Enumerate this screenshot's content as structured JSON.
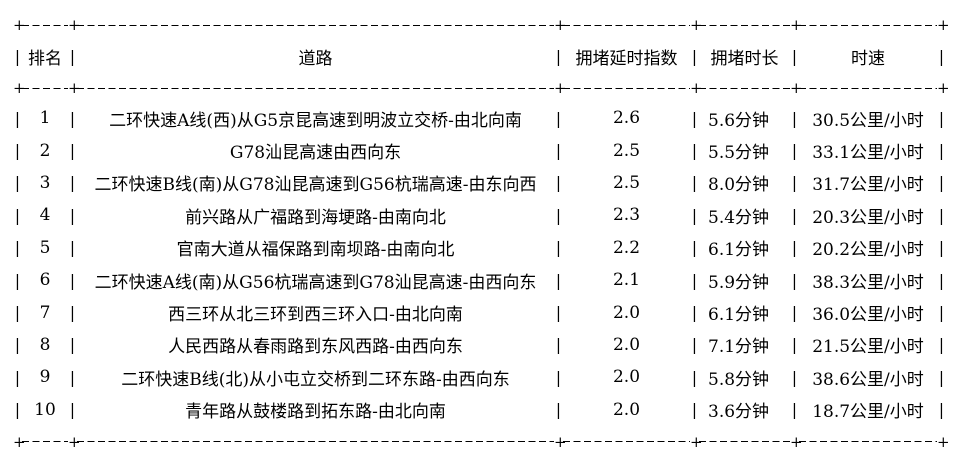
{
  "chart_data": {
    "type": "table",
    "title": "",
    "columns": [
      "排名",
      "道路",
      "拥堵延时指数",
      "拥堵时长",
      "时速"
    ],
    "rows": [
      [
        "1",
        "二环快速A线(西)从G5京昆高速到明波立交桥-由北向南",
        "2.6",
        "5.6分钟",
        "30.5公里/小时"
      ],
      [
        "2",
        "G78汕昆高速由西向东",
        "2.5",
        "5.5分钟",
        "33.1公里/小时"
      ],
      [
        "3",
        "二环快速B线(南)从G78汕昆高速到G56杭瑞高速-由东向西",
        "2.5",
        "8.0分钟",
        "31.7公里/小时"
      ],
      [
        "4",
        "前兴路从广福路到海埂路-由南向北",
        "2.3",
        "5.4分钟",
        "20.3公里/小时"
      ],
      [
        "5",
        "官南大道从福保路到南坝路-由南向北",
        "2.2",
        "6.1分钟",
        "20.2公里/小时"
      ],
      [
        "6",
        "二环快速A线(南)从G56杭瑞高速到G78汕昆高速-由西向东",
        "2.1",
        "5.9分钟",
        "38.3公里/小时"
      ],
      [
        "7",
        "西三环从北三环到西三环入口-由北向南",
        "2.0",
        "6.1分钟",
        "36.0公里/小时"
      ],
      [
        "8",
        "人民西路从春雨路到东风西路-由西向东",
        "2.0",
        "7.1分钟",
        "21.5公里/小时"
      ],
      [
        "9",
        "二环快速B线(北)从小屯立交桥到二环东路-由西向东",
        "2.0",
        "5.8分钟",
        "38.6公里/小时"
      ],
      [
        "10",
        "青年路从鼓楼路到拓东路-由北向南",
        "2.0",
        "3.6分钟",
        "18.7公里/小时"
      ]
    ],
    "layout": {
      "border_style": "ascii-dashed",
      "alignment": [
        "center",
        "center",
        "center",
        "left",
        "center"
      ]
    }
  },
  "glyphs": {
    "corner": "+",
    "vertical": "|"
  },
  "colors": {
    "background": "#ffffff",
    "text": "#000000",
    "border": "#000000"
  }
}
